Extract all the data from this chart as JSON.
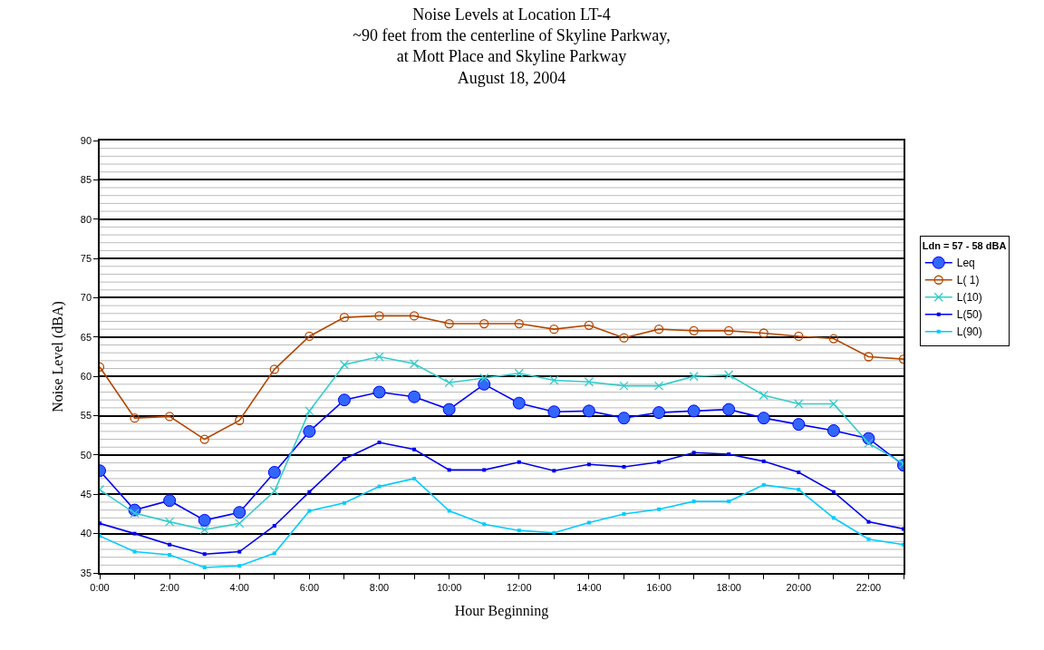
{
  "chart_data": {
    "type": "line",
    "title": "Noise Levels at Location LT-4\n~90 feet from the centerline of Skyline Parkway,\nat Mott Place and Skyline Parkway\nAugust 18, 2004",
    "xlabel": "Hour Beginning",
    "ylabel": "Noise Level (dBA)",
    "legend_title": "Ldn = 57 - 58 dBA",
    "x": [
      0,
      1,
      2,
      3,
      4,
      5,
      6,
      7,
      8,
      9,
      10,
      11,
      12,
      13,
      14,
      15,
      16,
      17,
      18,
      19,
      20,
      21,
      22,
      23
    ],
    "series": [
      {
        "name": "Leq",
        "color": "#0000ff",
        "marker": "circle",
        "values": [
          48,
          43,
          44.2,
          41.7,
          42.7,
          47.8,
          53,
          57,
          58,
          57.4,
          55.8,
          59,
          56.6,
          55.5,
          55.6,
          54.7,
          55.4,
          55.6,
          55.8,
          54.7,
          53.9,
          53.1,
          52.1,
          48.7
        ]
      },
      {
        "name": "L( 1)",
        "color": "#b34700",
        "marker": "circle",
        "values": [
          61.2,
          54.7,
          54.9,
          52,
          54.4,
          60.9,
          65.1,
          67.5,
          67.7,
          67.7,
          66.7,
          66.7,
          66.7,
          66,
          66.5,
          64.9,
          66,
          65.8,
          65.8,
          65.5,
          65.1,
          64.8,
          62.5,
          62.2
        ]
      },
      {
        "name": "L(10)",
        "color": "#33cccc",
        "marker": "cross",
        "values": [
          45.6,
          42.6,
          41.5,
          40.5,
          41.3,
          45.4,
          55.6,
          61.5,
          62.5,
          61.6,
          59.2,
          59.8,
          60.4,
          59.5,
          59.3,
          58.8,
          58.8,
          60,
          60.2,
          57.6,
          56.5,
          56.5,
          51.5,
          48.9
        ]
      },
      {
        "name": "L(50)",
        "color": "#0000ee",
        "marker": "square",
        "values": [
          41.3,
          40,
          38.6,
          37.4,
          37.7,
          41,
          45.3,
          49.5,
          51.6,
          50.7,
          48.1,
          48.1,
          49.1,
          48,
          48.8,
          48.5,
          49.1,
          50.3,
          50.1,
          49.2,
          47.8,
          45.3,
          41.5,
          40.6
        ]
      },
      {
        "name": "L(90)",
        "color": "#00ccff",
        "marker": "square",
        "values": [
          39.7,
          37.7,
          37.3,
          35.7,
          35.9,
          37.5,
          42.9,
          43.9,
          46,
          47,
          42.9,
          41.2,
          40.4,
          40.1,
          41.4,
          42.5,
          43.1,
          44.1,
          44.1,
          46.2,
          45.6,
          42,
          39.3,
          38.6
        ]
      }
    ],
    "xlim": [
      0,
      23
    ],
    "xticks": [
      {
        "value": 0,
        "label": "0:00"
      },
      {
        "value": 1,
        "label": null
      },
      {
        "value": 2,
        "label": "2:00"
      },
      {
        "value": 3,
        "label": null
      },
      {
        "value": 4,
        "label": "4:00"
      },
      {
        "value": 5,
        "label": null
      },
      {
        "value": 6,
        "label": "6:00"
      },
      {
        "value": 7,
        "label": null
      },
      {
        "value": 8,
        "label": "8:00"
      },
      {
        "value": 9,
        "label": null
      },
      {
        "value": 10,
        "label": "10:00"
      },
      {
        "value": 11,
        "label": null
      },
      {
        "value": 12,
        "label": "12:00"
      },
      {
        "value": 13,
        "label": null
      },
      {
        "value": 14,
        "label": "14:00"
      },
      {
        "value": 15,
        "label": null
      },
      {
        "value": 16,
        "label": "16:00"
      },
      {
        "value": 17,
        "label": null
      },
      {
        "value": 18,
        "label": "18:00"
      },
      {
        "value": 19,
        "label": null
      },
      {
        "value": 20,
        "label": "20:00"
      },
      {
        "value": 21,
        "label": null
      },
      {
        "value": 22,
        "label": "22:00"
      },
      {
        "value": 23,
        "label": null
      }
    ],
    "ylim": [
      35,
      90
    ],
    "yticks": [
      35,
      40,
      45,
      50,
      55,
      60,
      65,
      70,
      75,
      80,
      85,
      90
    ],
    "grid": "y",
    "legend": "right",
    "line_style": "solid"
  }
}
